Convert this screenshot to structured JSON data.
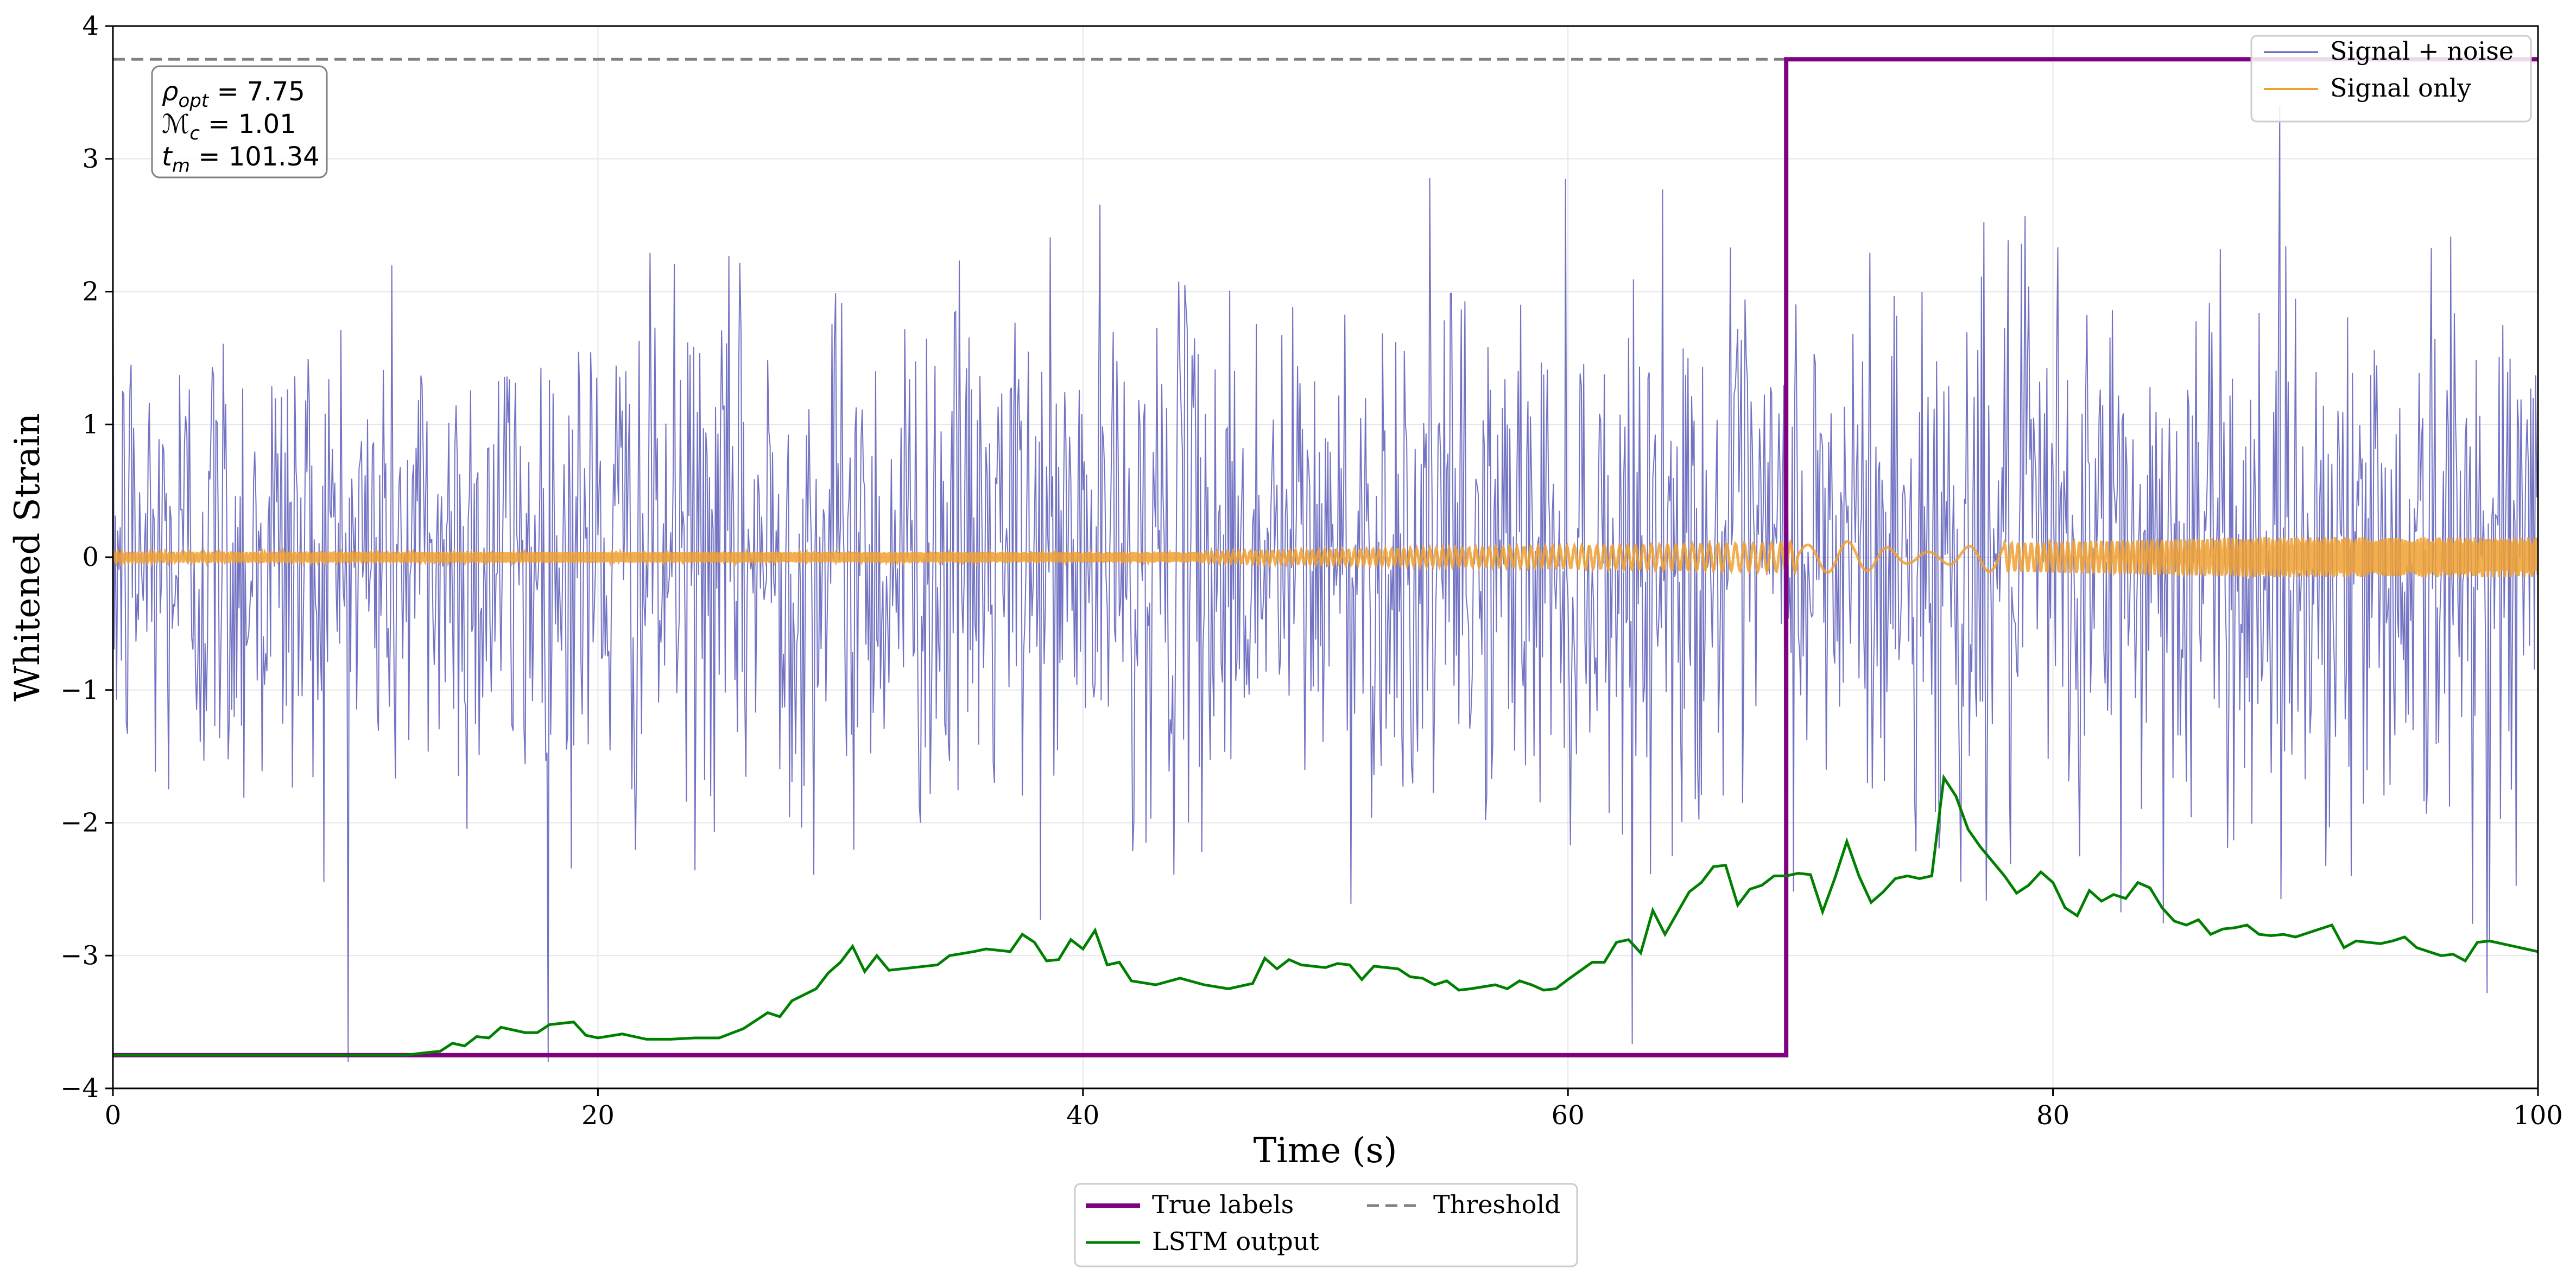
{
  "chart_data": {
    "type": "line",
    "title": "",
    "xlabel": "Time (s)",
    "ylabel": "Whitened Strain",
    "xlim": [
      0,
      100
    ],
    "ylim": [
      -4,
      4
    ],
    "xticks": [
      0,
      20,
      40,
      60,
      80,
      100
    ],
    "xtick_labels": [
      "0",
      "20",
      "40",
      "60",
      "80",
      "100"
    ],
    "yticks": [
      -4,
      -3,
      -2,
      -1,
      0,
      1,
      2,
      3,
      4
    ],
    "ytick_labels": [
      "−4",
      "−3",
      "−2",
      "−1",
      "0",
      "1",
      "2",
      "3",
      "4"
    ],
    "grid": true,
    "annotation": {
      "lines": [
        {
          "sym": "ρ",
          "sub": "opt",
          "text": " = 7.75"
        },
        {
          "sym": "ℳ",
          "sub": "c",
          "text": " = 1.01"
        },
        {
          "sym": "t",
          "sub": "m",
          "text": " = 101.34"
        }
      ],
      "placement": "top-left"
    },
    "series": [
      {
        "name": "Signal + noise",
        "color": "#5b5bb8",
        "kind": "noise",
        "n_points": 2000,
        "std_before_merger": 0.95,
        "std_after_merger": 1.05,
        "observed_range": [
          -3.8,
          3.4
        ]
      },
      {
        "name": "Signal only",
        "color": "#f0a030",
        "kind": "chirp",
        "amplitude_early": 0.04,
        "amplitude_late": 0.15,
        "quiet_window": [
          69.5,
          78.0
        ]
      },
      {
        "name": "True labels",
        "color": "#800080",
        "kind": "step",
        "points": [
          [
            0,
            -3.75
          ],
          [
            69,
            -3.75
          ],
          [
            69,
            3.75
          ],
          [
            100,
            3.75
          ]
        ]
      },
      {
        "name": "Threshold",
        "color": "#808080",
        "kind": "hline",
        "y": 3.75,
        "dashed": true
      },
      {
        "name": "LSTM output",
        "color": "#008000",
        "kind": "line",
        "points": [
          [
            0,
            -3.75
          ],
          [
            12,
            -3.75
          ],
          [
            13,
            -3.73
          ],
          [
            13.5,
            -3.72
          ],
          [
            14,
            -3.66
          ],
          [
            14.5,
            -3.68
          ],
          [
            15,
            -3.61
          ],
          [
            15.5,
            -3.62
          ],
          [
            16,
            -3.54
          ],
          [
            17,
            -3.58
          ],
          [
            17.5,
            -3.58
          ],
          [
            18,
            -3.52
          ],
          [
            19,
            -3.5
          ],
          [
            19.5,
            -3.6
          ],
          [
            20,
            -3.62
          ],
          [
            21,
            -3.59
          ],
          [
            22,
            -3.63
          ],
          [
            23,
            -3.63
          ],
          [
            24,
            -3.62
          ],
          [
            25,
            -3.62
          ],
          [
            26,
            -3.55
          ],
          [
            27,
            -3.43
          ],
          [
            27.5,
            -3.46
          ],
          [
            28,
            -3.34
          ],
          [
            29,
            -3.25
          ],
          [
            29.5,
            -3.13
          ],
          [
            30,
            -3.05
          ],
          [
            30.5,
            -2.93
          ],
          [
            31,
            -3.12
          ],
          [
            31.5,
            -3.0
          ],
          [
            32,
            -3.11
          ],
          [
            33,
            -3.09
          ],
          [
            34,
            -3.07
          ],
          [
            34.5,
            -3.0
          ],
          [
            35.5,
            -2.97
          ],
          [
            36,
            -2.95
          ],
          [
            37,
            -2.97
          ],
          [
            37.5,
            -2.84
          ],
          [
            38,
            -2.9
          ],
          [
            38.5,
            -3.04
          ],
          [
            39,
            -3.03
          ],
          [
            39.5,
            -2.88
          ],
          [
            40,
            -2.95
          ],
          [
            40.5,
            -2.81
          ],
          [
            41,
            -3.07
          ],
          [
            41.5,
            -3.05
          ],
          [
            42,
            -3.19
          ],
          [
            43,
            -3.22
          ],
          [
            44,
            -3.17
          ],
          [
            45,
            -3.22
          ],
          [
            46,
            -3.25
          ],
          [
            47,
            -3.21
          ],
          [
            47.5,
            -3.02
          ],
          [
            48,
            -3.1
          ],
          [
            48.5,
            -3.03
          ],
          [
            49,
            -3.07
          ],
          [
            50,
            -3.09
          ],
          [
            50.5,
            -3.06
          ],
          [
            51,
            -3.07
          ],
          [
            51.5,
            -3.18
          ],
          [
            52,
            -3.08
          ],
          [
            53,
            -3.1
          ],
          [
            53.5,
            -3.16
          ],
          [
            54,
            -3.17
          ],
          [
            54.5,
            -3.22
          ],
          [
            55,
            -3.19
          ],
          [
            55.5,
            -3.26
          ],
          [
            56,
            -3.25
          ],
          [
            57,
            -3.22
          ],
          [
            57.5,
            -3.25
          ],
          [
            58,
            -3.19
          ],
          [
            58.5,
            -3.22
          ],
          [
            59,
            -3.26
          ],
          [
            59.5,
            -3.25
          ],
          [
            60,
            -3.18
          ],
          [
            61,
            -3.05
          ],
          [
            61.5,
            -3.05
          ],
          [
            62,
            -2.9
          ],
          [
            62.5,
            -2.88
          ],
          [
            63,
            -2.98
          ],
          [
            63.5,
            -2.66
          ],
          [
            64,
            -2.84
          ],
          [
            64.5,
            -2.68
          ],
          [
            65,
            -2.52
          ],
          [
            65.5,
            -2.45
          ],
          [
            66,
            -2.33
          ],
          [
            66.5,
            -2.32
          ],
          [
            67,
            -2.62
          ],
          [
            67.5,
            -2.5
          ],
          [
            68,
            -2.47
          ],
          [
            68.5,
            -2.4
          ],
          [
            69,
            -2.4
          ],
          [
            69.5,
            -2.38
          ],
          [
            70,
            -2.39
          ],
          [
            70.5,
            -2.67
          ],
          [
            71,
            -2.42
          ],
          [
            71.5,
            -2.14
          ],
          [
            72,
            -2.4
          ],
          [
            72.5,
            -2.6
          ],
          [
            73,
            -2.52
          ],
          [
            73.5,
            -2.42
          ],
          [
            74,
            -2.4
          ],
          [
            74.5,
            -2.42
          ],
          [
            75,
            -2.4
          ],
          [
            75.5,
            -1.66
          ],
          [
            76,
            -1.8
          ],
          [
            76.5,
            -2.05
          ],
          [
            77,
            -2.18
          ],
          [
            78,
            -2.4
          ],
          [
            78.5,
            -2.53
          ],
          [
            79,
            -2.47
          ],
          [
            79.5,
            -2.37
          ],
          [
            80,
            -2.45
          ],
          [
            80.5,
            -2.64
          ],
          [
            81,
            -2.7
          ],
          [
            81.5,
            -2.51
          ],
          [
            82,
            -2.59
          ],
          [
            82.5,
            -2.54
          ],
          [
            83,
            -2.57
          ],
          [
            83.5,
            -2.45
          ],
          [
            84,
            -2.49
          ],
          [
            84.5,
            -2.64
          ],
          [
            85,
            -2.74
          ],
          [
            85.5,
            -2.77
          ],
          [
            86,
            -2.73
          ],
          [
            86.5,
            -2.84
          ],
          [
            87,
            -2.8
          ],
          [
            87.5,
            -2.79
          ],
          [
            88,
            -2.77
          ],
          [
            88.5,
            -2.84
          ],
          [
            89,
            -2.85
          ],
          [
            89.5,
            -2.84
          ],
          [
            90,
            -2.86
          ],
          [
            90.5,
            -2.83
          ],
          [
            91,
            -2.8
          ],
          [
            91.5,
            -2.77
          ],
          [
            92,
            -2.94
          ],
          [
            92.5,
            -2.89
          ],
          [
            93,
            -2.9
          ],
          [
            93.5,
            -2.91
          ],
          [
            94,
            -2.89
          ],
          [
            94.5,
            -2.86
          ],
          [
            95,
            -2.94
          ],
          [
            96,
            -3.0
          ],
          [
            96.5,
            -2.99
          ],
          [
            97,
            -3.04
          ],
          [
            97.5,
            -2.9
          ],
          [
            98,
            -2.89
          ],
          [
            99,
            -2.93
          ],
          [
            100,
            -2.97
          ]
        ]
      }
    ],
    "legends": [
      {
        "placement": "top-right",
        "entries": [
          "Signal + noise",
          "Signal only"
        ]
      },
      {
        "placement": "bottom-center-outside",
        "columns": 2,
        "entries": [
          "True labels",
          "LSTM output",
          "Threshold"
        ]
      }
    ]
  }
}
